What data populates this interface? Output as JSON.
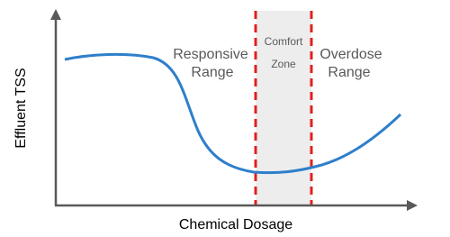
{
  "axes": {
    "x_label": "Chemical Dosage",
    "y_label": "Effluent TSS"
  },
  "regions": [
    {
      "label_lines": [
        "Responsive",
        "Range"
      ]
    },
    {
      "label_lines": [
        "Comfort",
        "Zone"
      ]
    },
    {
      "label_lines": [
        "Overdose",
        "Range"
      ]
    }
  ]
}
